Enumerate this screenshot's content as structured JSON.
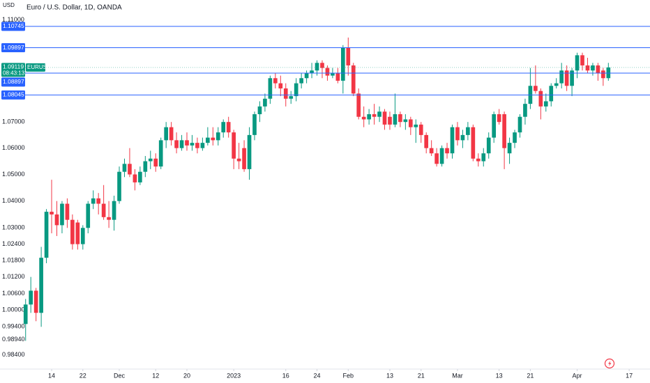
{
  "chart_data": {
    "type": "candlestick",
    "title": "Euro / U.S. Dollar, 1D, OANDA",
    "currency": "USD",
    "log_scale": true,
    "up_color": "#089981",
    "down_color": "#f23645",
    "open": [
      0.995,
      1.002,
      1.007,
      0.999,
      1.019,
      1.036,
      1.035,
      1.031,
      1.039,
      1.033,
      1.032,
      1.024,
      1.03,
      1.039,
      1.041,
      1.039,
      1.034,
      1.033,
      1.04,
      1.051,
      1.054,
      1.05,
      1.047,
      1.051,
      1.055,
      1.056,
      1.053,
      1.063,
      1.068,
      1.063,
      1.06,
      1.063,
      1.061,
      1.062,
      1.06,
      1.062,
      1.064,
      1.063,
      1.066,
      1.07,
      1.066,
      1.056,
      1.06,
      1.052,
      1.065,
      1.073,
      1.076,
      1.079,
      1.087,
      1.085,
      1.083,
      1.079,
      1.08,
      1.085,
      1.087,
      1.089,
      1.09,
      1.093,
      1.091,
      1.088,
      1.089,
      1.086,
      1.099,
      1.092,
      1.081,
      1.072,
      1.071,
      1.073,
      1.072,
      1.074,
      1.072,
      1.069,
      1.073,
      1.07,
      1.071,
      1.068,
      1.069,
      1.065,
      1.06,
      1.058,
      1.054,
      1.06,
      1.058,
      1.068,
      1.063,
      1.065,
      1.068,
      1.056,
      1.055,
      1.058,
      1.064,
      1.073,
      1.073,
      1.058,
      1.062,
      1.066,
      1.072,
      1.077,
      1.084,
      1.082,
      1.076,
      1.078,
      1.084,
      1.085,
      1.09,
      1.084,
      1.09,
      1.096,
      1.092,
      1.09,
      1.092,
      1.09,
      1.087
    ],
    "high": [
      1.004,
      1.012,
      1.008,
      1.023,
      1.037,
      1.048,
      1.04,
      1.04,
      1.041,
      1.035,
      1.033,
      1.031,
      1.04,
      1.044,
      1.043,
      1.046,
      1.04,
      1.042,
      1.053,
      1.056,
      1.06,
      1.052,
      1.053,
      1.057,
      1.059,
      1.058,
      1.064,
      1.07,
      1.07,
      1.066,
      1.065,
      1.066,
      1.065,
      1.064,
      1.064,
      1.068,
      1.068,
      1.068,
      1.071,
      1.072,
      1.067,
      1.062,
      1.063,
      1.068,
      1.074,
      1.078,
      1.081,
      1.088,
      1.089,
      1.088,
      1.085,
      1.082,
      1.087,
      1.089,
      1.09,
      1.093,
      1.094,
      1.094,
      1.092,
      1.091,
      1.091,
      1.1,
      1.103,
      1.093,
      1.083,
      1.076,
      1.075,
      1.077,
      1.076,
      1.075,
      1.074,
      1.081,
      1.074,
      1.073,
      1.072,
      1.071,
      1.07,
      1.066,
      1.063,
      1.06,
      1.061,
      1.062,
      1.069,
      1.07,
      1.067,
      1.07,
      1.069,
      1.058,
      1.06,
      1.066,
      1.074,
      1.075,
      1.074,
      1.064,
      1.067,
      1.073,
      1.079,
      1.091,
      1.092,
      1.083,
      1.081,
      1.085,
      1.087,
      1.093,
      1.092,
      1.091,
      1.097,
      1.097,
      1.095,
      1.093,
      1.093,
      1.091,
      1.093
    ],
    "low": [
      0.989,
      0.999,
      0.996,
      0.994,
      1.017,
      1.028,
      1.027,
      1.028,
      1.03,
      1.022,
      1.022,
      1.022,
      1.028,
      1.037,
      1.035,
      1.033,
      1.03,
      1.029,
      1.039,
      1.049,
      1.049,
      1.044,
      1.046,
      1.049,
      1.052,
      1.051,
      1.052,
      1.06,
      1.061,
      1.058,
      1.059,
      1.059,
      1.059,
      1.058,
      1.059,
      1.061,
      1.061,
      1.061,
      1.064,
      1.064,
      1.052,
      1.052,
      1.051,
      1.048,
      1.063,
      1.07,
      1.074,
      1.077,
      1.083,
      1.08,
      1.076,
      1.077,
      1.078,
      1.083,
      1.085,
      1.087,
      1.088,
      1.087,
      1.086,
      1.087,
      1.085,
      1.081,
      1.088,
      1.08,
      1.071,
      1.068,
      1.069,
      1.069,
      1.07,
      1.067,
      1.067,
      1.068,
      1.068,
      1.067,
      1.065,
      1.062,
      1.062,
      1.058,
      1.057,
      1.053,
      1.053,
      1.056,
      1.056,
      1.061,
      1.06,
      1.063,
      1.055,
      1.053,
      1.053,
      1.056,
      1.062,
      1.069,
      1.052,
      1.054,
      1.06,
      1.064,
      1.069,
      1.075,
      1.081,
      1.071,
      1.074,
      1.076,
      1.083,
      1.083,
      1.082,
      1.08,
      1.087,
      1.09,
      1.089,
      1.088,
      1.086,
      1.084,
      1.086
    ],
    "close": [
      1.002,
      1.007,
      0.999,
      1.019,
      1.036,
      1.035,
      1.031,
      1.039,
      1.033,
      1.024,
      1.024,
      1.03,
      1.039,
      1.041,
      1.039,
      1.034,
      1.033,
      1.04,
      1.051,
      1.054,
      1.05,
      1.047,
      1.051,
      1.055,
      1.056,
      1.053,
      1.063,
      1.068,
      1.063,
      1.06,
      1.063,
      1.061,
      1.062,
      1.06,
      1.062,
      1.064,
      1.063,
      1.066,
      1.07,
      1.066,
      1.056,
      1.055,
      1.052,
      1.065,
      1.073,
      1.076,
      1.079,
      1.087,
      1.085,
      1.083,
      1.079,
      1.08,
      1.085,
      1.087,
      1.089,
      1.09,
      1.093,
      1.091,
      1.088,
      1.089,
      1.086,
      1.099,
      1.092,
      1.081,
      1.072,
      1.071,
      1.073,
      1.072,
      1.074,
      1.069,
      1.069,
      1.073,
      1.07,
      1.071,
      1.068,
      1.069,
      1.065,
      1.06,
      1.058,
      1.054,
      1.06,
      1.058,
      1.068,
      1.063,
      1.065,
      1.068,
      1.056,
      1.055,
      1.058,
      1.064,
      1.073,
      1.07,
      1.06,
      1.062,
      1.066,
      1.072,
      1.077,
      1.084,
      1.082,
      1.076,
      1.078,
      1.084,
      1.085,
      1.09,
      1.084,
      1.09,
      1.096,
      1.092,
      1.09,
      1.092,
      1.089,
      1.087,
      1.09119
    ],
    "xlim": [
      -0.5,
      120
    ],
    "xticks": [
      {
        "value": 5,
        "label": "14"
      },
      {
        "value": 11,
        "label": "22"
      },
      {
        "value": 18,
        "label": "Dec"
      },
      {
        "value": 25,
        "label": "12"
      },
      {
        "value": 31,
        "label": "20"
      },
      {
        "value": 40,
        "label": "2023"
      },
      {
        "value": 50,
        "label": "16"
      },
      {
        "value": 56,
        "label": "24"
      },
      {
        "value": 62,
        "label": "Feb"
      },
      {
        "value": 70,
        "label": "13"
      },
      {
        "value": 76,
        "label": "21"
      },
      {
        "value": 83,
        "label": "Mar"
      },
      {
        "value": 91,
        "label": "13"
      },
      {
        "value": 97,
        "label": "21"
      },
      {
        "value": 106,
        "label": "Apr"
      },
      {
        "value": 116,
        "label": "17"
      }
    ],
    "ylim": [
      0.979,
      1.118
    ],
    "yticks": [
      {
        "value": 1.11,
        "label": "1.11000"
      },
      {
        "value": 1.07,
        "label": "1.07000"
      },
      {
        "value": 1.06,
        "label": "1.06000"
      },
      {
        "value": 1.05,
        "label": "1.05000"
      },
      {
        "value": 1.04,
        "label": "1.04000"
      },
      {
        "value": 1.03,
        "label": "1.03000"
      },
      {
        "value": 1.024,
        "label": "1.02400"
      },
      {
        "value": 1.018,
        "label": "1.01800"
      },
      {
        "value": 1.012,
        "label": "1.01200"
      },
      {
        "value": 1.006,
        "label": "1.00600"
      },
      {
        "value": 1,
        "label": "1.00000"
      },
      {
        "value": 0.994,
        "label": "0.99400"
      },
      {
        "value": 0.9894,
        "label": "0.98940"
      },
      {
        "value": 0.984,
        "label": "0.98400"
      }
    ],
    "price_lines": [
      1.10745,
      1.09897,
      1.08897,
      1.08045
    ],
    "price_line_color": "#2962ff",
    "last_price": {
      "value": 1.09119,
      "symbol": "EURUSD",
      "countdown": "08:43:13"
    }
  }
}
